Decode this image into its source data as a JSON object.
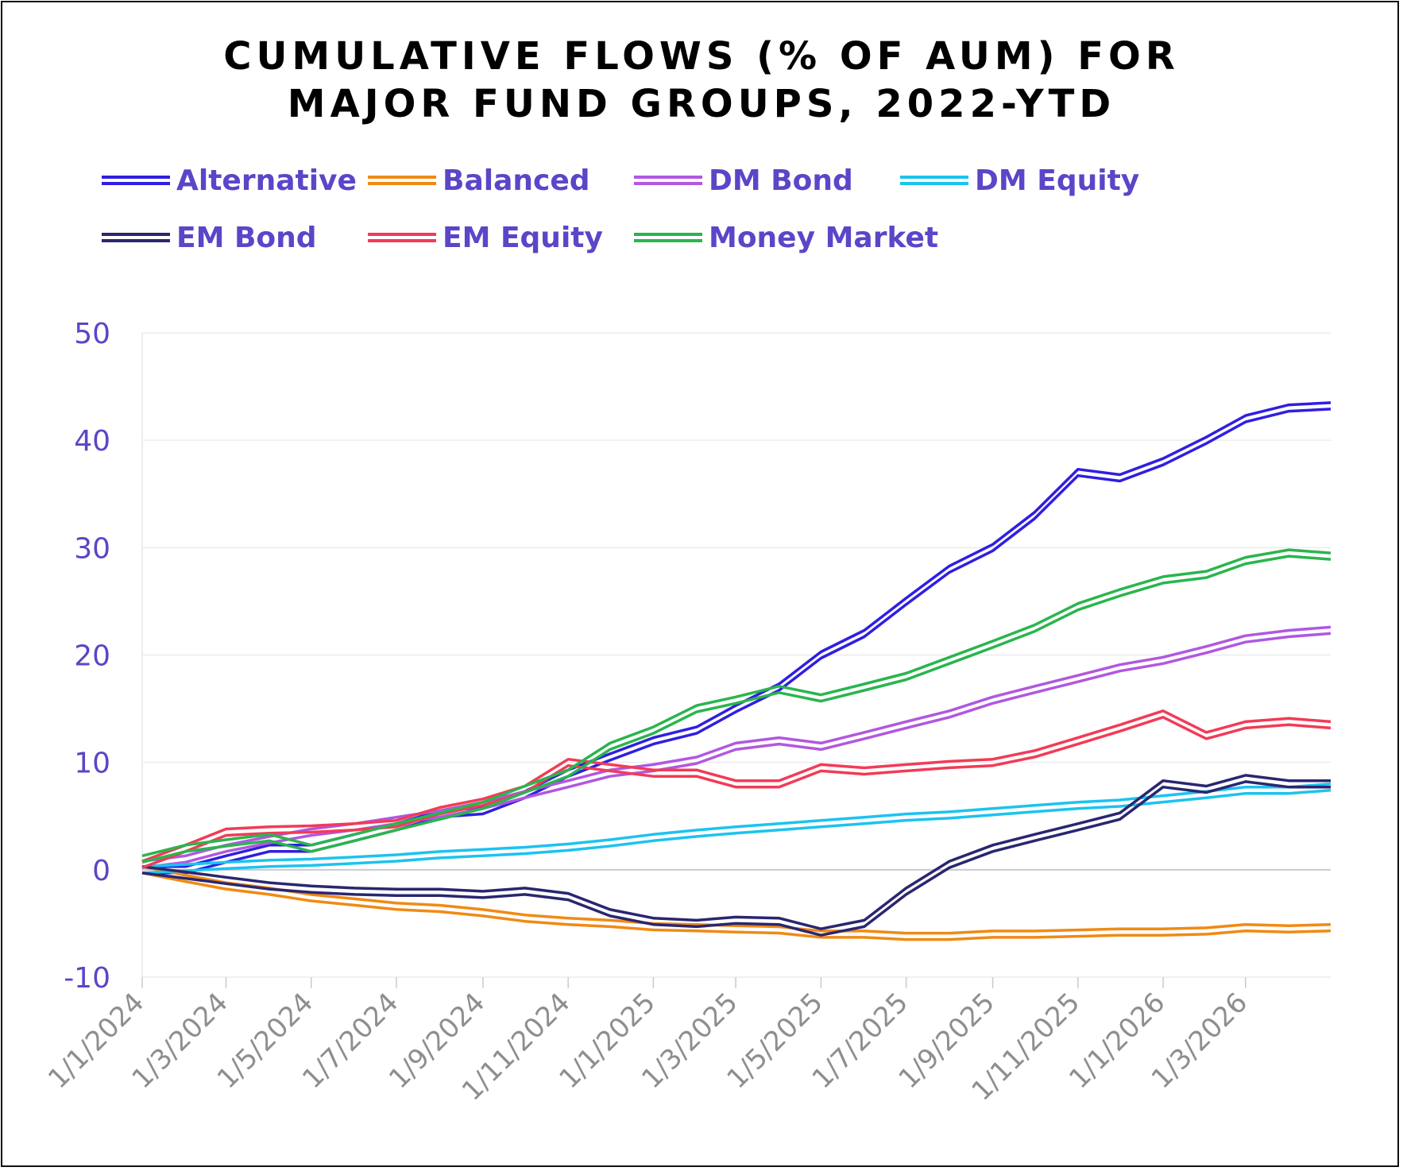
{
  "chart_data": {
    "type": "line",
    "title_line1": "CUMULATIVE FLOWS (% OF AUM) FOR",
    "title_line2": "MAJOR FUND GROUPS, 2022-YTD",
    "xlabel": "",
    "ylabel": "",
    "ylim": [
      -10,
      50
    ],
    "yticks": [
      -10,
      0,
      10,
      20,
      30,
      40,
      50
    ],
    "xlim": [
      "2024-01-01",
      "2026-05-01"
    ],
    "xticks": [
      {
        "date": "2024-01-01",
        "label": "1/1/2024"
      },
      {
        "date": "2024-03-01",
        "label": "1/3/2024"
      },
      {
        "date": "2024-05-01",
        "label": "1/5/2024"
      },
      {
        "date": "2024-07-01",
        "label": "1/7/2024"
      },
      {
        "date": "2024-09-01",
        "label": "1/9/2024"
      },
      {
        "date": "2024-11-01",
        "label": "1/11/2024"
      },
      {
        "date": "2025-01-01",
        "label": "1/1/2025"
      },
      {
        "date": "2025-03-01",
        "label": "1/3/2025"
      },
      {
        "date": "2025-05-01",
        "label": "1/5/2025"
      },
      {
        "date": "2025-07-01",
        "label": "1/7/2025"
      },
      {
        "date": "2025-09-01",
        "label": "1/9/2025"
      },
      {
        "date": "2025-11-01",
        "label": "1/11/2025"
      },
      {
        "date": "2026-01-01",
        "label": "1/1/2026"
      },
      {
        "date": "2026-03-01",
        "label": "1/3/2026"
      }
    ],
    "grid": "horizontal",
    "legend_position": "top",
    "line_style": "double",
    "series": [
      {
        "name": "Alternative",
        "color": "#2f1fe0",
        "points": [
          [
            "2024-01-01",
            0
          ],
          [
            "2024-02-01",
            0
          ],
          [
            "2024-03-01",
            1
          ],
          [
            "2024-04-01",
            2
          ],
          [
            "2024-05-01",
            2
          ],
          [
            "2024-06-01",
            3
          ],
          [
            "2024-07-01",
            4
          ],
          [
            "2024-08-01",
            5.2
          ],
          [
            "2024-09-01",
            5.5
          ],
          [
            "2024-10-01",
            7
          ],
          [
            "2024-11-01",
            9
          ],
          [
            "2024-12-01",
            10.5
          ],
          [
            "2025-01-01",
            12
          ],
          [
            "2025-02-01",
            13
          ],
          [
            "2025-03-01",
            15
          ],
          [
            "2025-04-01",
            17
          ],
          [
            "2025-05-01",
            20
          ],
          [
            "2025-06-01",
            22
          ],
          [
            "2025-07-01",
            25
          ],
          [
            "2025-08-01",
            28
          ],
          [
            "2025-09-01",
            30
          ],
          [
            "2025-10-01",
            33
          ],
          [
            "2025-11-01",
            37
          ],
          [
            "2025-12-01",
            36.5
          ],
          [
            "2026-01-01",
            38
          ],
          [
            "2026-02-01",
            40
          ],
          [
            "2026-03-01",
            42
          ],
          [
            "2026-04-01",
            43
          ],
          [
            "2026-05-01",
            43.2
          ]
        ]
      },
      {
        "name": "Balanced",
        "color": "#f08a14",
        "points": [
          [
            "2024-01-01",
            0
          ],
          [
            "2024-02-01",
            -0.8
          ],
          [
            "2024-03-01",
            -1.5
          ],
          [
            "2024-04-01",
            -2
          ],
          [
            "2024-05-01",
            -2.6
          ],
          [
            "2024-06-01",
            -3
          ],
          [
            "2024-07-01",
            -3.4
          ],
          [
            "2024-08-01",
            -3.6
          ],
          [
            "2024-09-01",
            -4
          ],
          [
            "2024-10-01",
            -4.5
          ],
          [
            "2024-11-01",
            -4.8
          ],
          [
            "2024-12-01",
            -5
          ],
          [
            "2025-01-01",
            -5.3
          ],
          [
            "2025-02-01",
            -5.4
          ],
          [
            "2025-03-01",
            -5.5
          ],
          [
            "2025-04-01",
            -5.6
          ],
          [
            "2025-05-01",
            -6
          ],
          [
            "2025-06-01",
            -6
          ],
          [
            "2025-07-01",
            -6.2
          ],
          [
            "2025-08-01",
            -6.2
          ],
          [
            "2025-09-01",
            -6
          ],
          [
            "2025-10-01",
            -6
          ],
          [
            "2025-11-01",
            -5.9
          ],
          [
            "2025-12-01",
            -5.8
          ],
          [
            "2026-01-01",
            -5.8
          ],
          [
            "2026-02-01",
            -5.7
          ],
          [
            "2026-03-01",
            -5.4
          ],
          [
            "2026-04-01",
            -5.5
          ],
          [
            "2026-05-01",
            -5.4
          ]
        ]
      },
      {
        "name": "DM Bond",
        "color": "#b157e0",
        "points": [
          [
            "2024-01-01",
            0.5
          ],
          [
            "2024-02-01",
            1
          ],
          [
            "2024-03-01",
            2
          ],
          [
            "2024-04-01",
            2.8
          ],
          [
            "2024-05-01",
            3.5
          ],
          [
            "2024-06-01",
            4
          ],
          [
            "2024-07-01",
            4.6
          ],
          [
            "2024-08-01",
            5.2
          ],
          [
            "2024-09-01",
            6
          ],
          [
            "2024-10-01",
            7
          ],
          [
            "2024-11-01",
            8
          ],
          [
            "2024-12-01",
            9
          ],
          [
            "2025-01-01",
            9.5
          ],
          [
            "2025-02-01",
            10.2
          ],
          [
            "2025-03-01",
            11.5
          ],
          [
            "2025-04-01",
            12
          ],
          [
            "2025-05-01",
            11.5
          ],
          [
            "2025-06-01",
            12.5
          ],
          [
            "2025-07-01",
            13.5
          ],
          [
            "2025-08-01",
            14.5
          ],
          [
            "2025-09-01",
            15.8
          ],
          [
            "2025-10-01",
            16.8
          ],
          [
            "2025-11-01",
            17.8
          ],
          [
            "2025-12-01",
            18.8
          ],
          [
            "2026-01-01",
            19.5
          ],
          [
            "2026-02-01",
            20.5
          ],
          [
            "2026-03-01",
            21.5
          ],
          [
            "2026-04-01",
            22
          ],
          [
            "2026-05-01",
            22.3
          ]
        ]
      },
      {
        "name": "DM Equity",
        "color": "#1cc3ef",
        "points": [
          [
            "2024-01-01",
            0
          ],
          [
            "2024-02-01",
            0.2
          ],
          [
            "2024-03-01",
            0.4
          ],
          [
            "2024-04-01",
            0.6
          ],
          [
            "2024-05-01",
            0.7
          ],
          [
            "2024-06-01",
            0.9
          ],
          [
            "2024-07-01",
            1.1
          ],
          [
            "2024-08-01",
            1.4
          ],
          [
            "2024-09-01",
            1.6
          ],
          [
            "2024-10-01",
            1.8
          ],
          [
            "2024-11-01",
            2.1
          ],
          [
            "2024-12-01",
            2.5
          ],
          [
            "2025-01-01",
            3
          ],
          [
            "2025-02-01",
            3.4
          ],
          [
            "2025-03-01",
            3.7
          ],
          [
            "2025-04-01",
            4
          ],
          [
            "2025-05-01",
            4.3
          ],
          [
            "2025-06-01",
            4.6
          ],
          [
            "2025-07-01",
            4.9
          ],
          [
            "2025-08-01",
            5.1
          ],
          [
            "2025-09-01",
            5.4
          ],
          [
            "2025-10-01",
            5.7
          ],
          [
            "2025-11-01",
            6
          ],
          [
            "2025-12-01",
            6.2
          ],
          [
            "2026-01-01",
            6.6
          ],
          [
            "2026-02-01",
            7
          ],
          [
            "2026-03-01",
            7.4
          ],
          [
            "2026-04-01",
            7.4
          ],
          [
            "2026-05-01",
            7.7
          ]
        ]
      },
      {
        "name": "EM Bond",
        "color": "#2a2670",
        "points": [
          [
            "2024-01-01",
            0
          ],
          [
            "2024-02-01",
            -0.5
          ],
          [
            "2024-03-01",
            -1
          ],
          [
            "2024-04-01",
            -1.5
          ],
          [
            "2024-05-01",
            -1.8
          ],
          [
            "2024-06-01",
            -2
          ],
          [
            "2024-07-01",
            -2.1
          ],
          [
            "2024-08-01",
            -2.1
          ],
          [
            "2024-09-01",
            -2.3
          ],
          [
            "2024-10-01",
            -2
          ],
          [
            "2024-11-01",
            -2.5
          ],
          [
            "2024-12-01",
            -4
          ],
          [
            "2025-01-01",
            -4.8
          ],
          [
            "2025-02-01",
            -5
          ],
          [
            "2025-03-01",
            -4.7
          ],
          [
            "2025-04-01",
            -4.8
          ],
          [
            "2025-05-01",
            -5.8
          ],
          [
            "2025-06-01",
            -5
          ],
          [
            "2025-07-01",
            -2
          ],
          [
            "2025-08-01",
            0.5
          ],
          [
            "2025-09-01",
            2
          ],
          [
            "2025-10-01",
            3
          ],
          [
            "2025-11-01",
            4
          ],
          [
            "2025-12-01",
            5
          ],
          [
            "2026-01-01",
            8
          ],
          [
            "2026-02-01",
            7.5
          ],
          [
            "2026-03-01",
            8.5
          ],
          [
            "2026-04-01",
            8
          ],
          [
            "2026-05-01",
            8
          ]
        ]
      },
      {
        "name": "EM Equity",
        "color": "#f23b57",
        "points": [
          [
            "2024-01-01",
            0.5
          ],
          [
            "2024-02-01",
            2
          ],
          [
            "2024-03-01",
            3.5
          ],
          [
            "2024-04-01",
            3.7
          ],
          [
            "2024-05-01",
            3.8
          ],
          [
            "2024-06-01",
            4
          ],
          [
            "2024-07-01",
            4.3
          ],
          [
            "2024-08-01",
            5.5
          ],
          [
            "2024-09-01",
            6.3
          ],
          [
            "2024-10-01",
            7.5
          ],
          [
            "2024-11-01",
            10
          ],
          [
            "2024-12-01",
            9.5
          ],
          [
            "2025-01-01",
            9
          ],
          [
            "2025-02-01",
            9
          ],
          [
            "2025-03-01",
            8
          ],
          [
            "2025-04-01",
            8
          ],
          [
            "2025-05-01",
            9.5
          ],
          [
            "2025-06-01",
            9.2
          ],
          [
            "2025-07-01",
            9.5
          ],
          [
            "2025-08-01",
            9.8
          ],
          [
            "2025-09-01",
            10
          ],
          [
            "2025-10-01",
            10.8
          ],
          [
            "2025-11-01",
            12
          ],
          [
            "2025-12-01",
            13.2
          ],
          [
            "2026-01-01",
            14.5
          ],
          [
            "2026-02-01",
            12.5
          ],
          [
            "2026-03-01",
            13.5
          ],
          [
            "2026-04-01",
            13.8
          ],
          [
            "2026-05-01",
            13.5
          ]
        ]
      },
      {
        "name": "Money Market",
        "color": "#2ab54d",
        "points": [
          [
            "2024-01-01",
            1
          ],
          [
            "2024-02-01",
            2
          ],
          [
            "2024-03-01",
            2.5
          ],
          [
            "2024-04-01",
            3
          ],
          [
            "2024-05-01",
            2
          ],
          [
            "2024-06-01",
            3
          ],
          [
            "2024-07-01",
            4
          ],
          [
            "2024-08-01",
            5
          ],
          [
            "2024-09-01",
            6
          ],
          [
            "2024-10-01",
            7.5
          ],
          [
            "2024-11-01",
            9
          ],
          [
            "2024-12-01",
            11.5
          ],
          [
            "2025-01-01",
            13
          ],
          [
            "2025-02-01",
            15
          ],
          [
            "2025-03-01",
            15.8
          ],
          [
            "2025-04-01",
            16.8
          ],
          [
            "2025-05-01",
            16
          ],
          [
            "2025-06-01",
            17
          ],
          [
            "2025-07-01",
            18
          ],
          [
            "2025-08-01",
            19.5
          ],
          [
            "2025-09-01",
            21
          ],
          [
            "2025-10-01",
            22.5
          ],
          [
            "2025-11-01",
            24.5
          ],
          [
            "2025-12-01",
            25.8
          ],
          [
            "2026-01-01",
            27
          ],
          [
            "2026-02-01",
            27.5
          ],
          [
            "2026-03-01",
            28.8
          ],
          [
            "2026-04-01",
            29.5
          ],
          [
            "2026-05-01",
            29.2
          ]
        ]
      }
    ]
  }
}
